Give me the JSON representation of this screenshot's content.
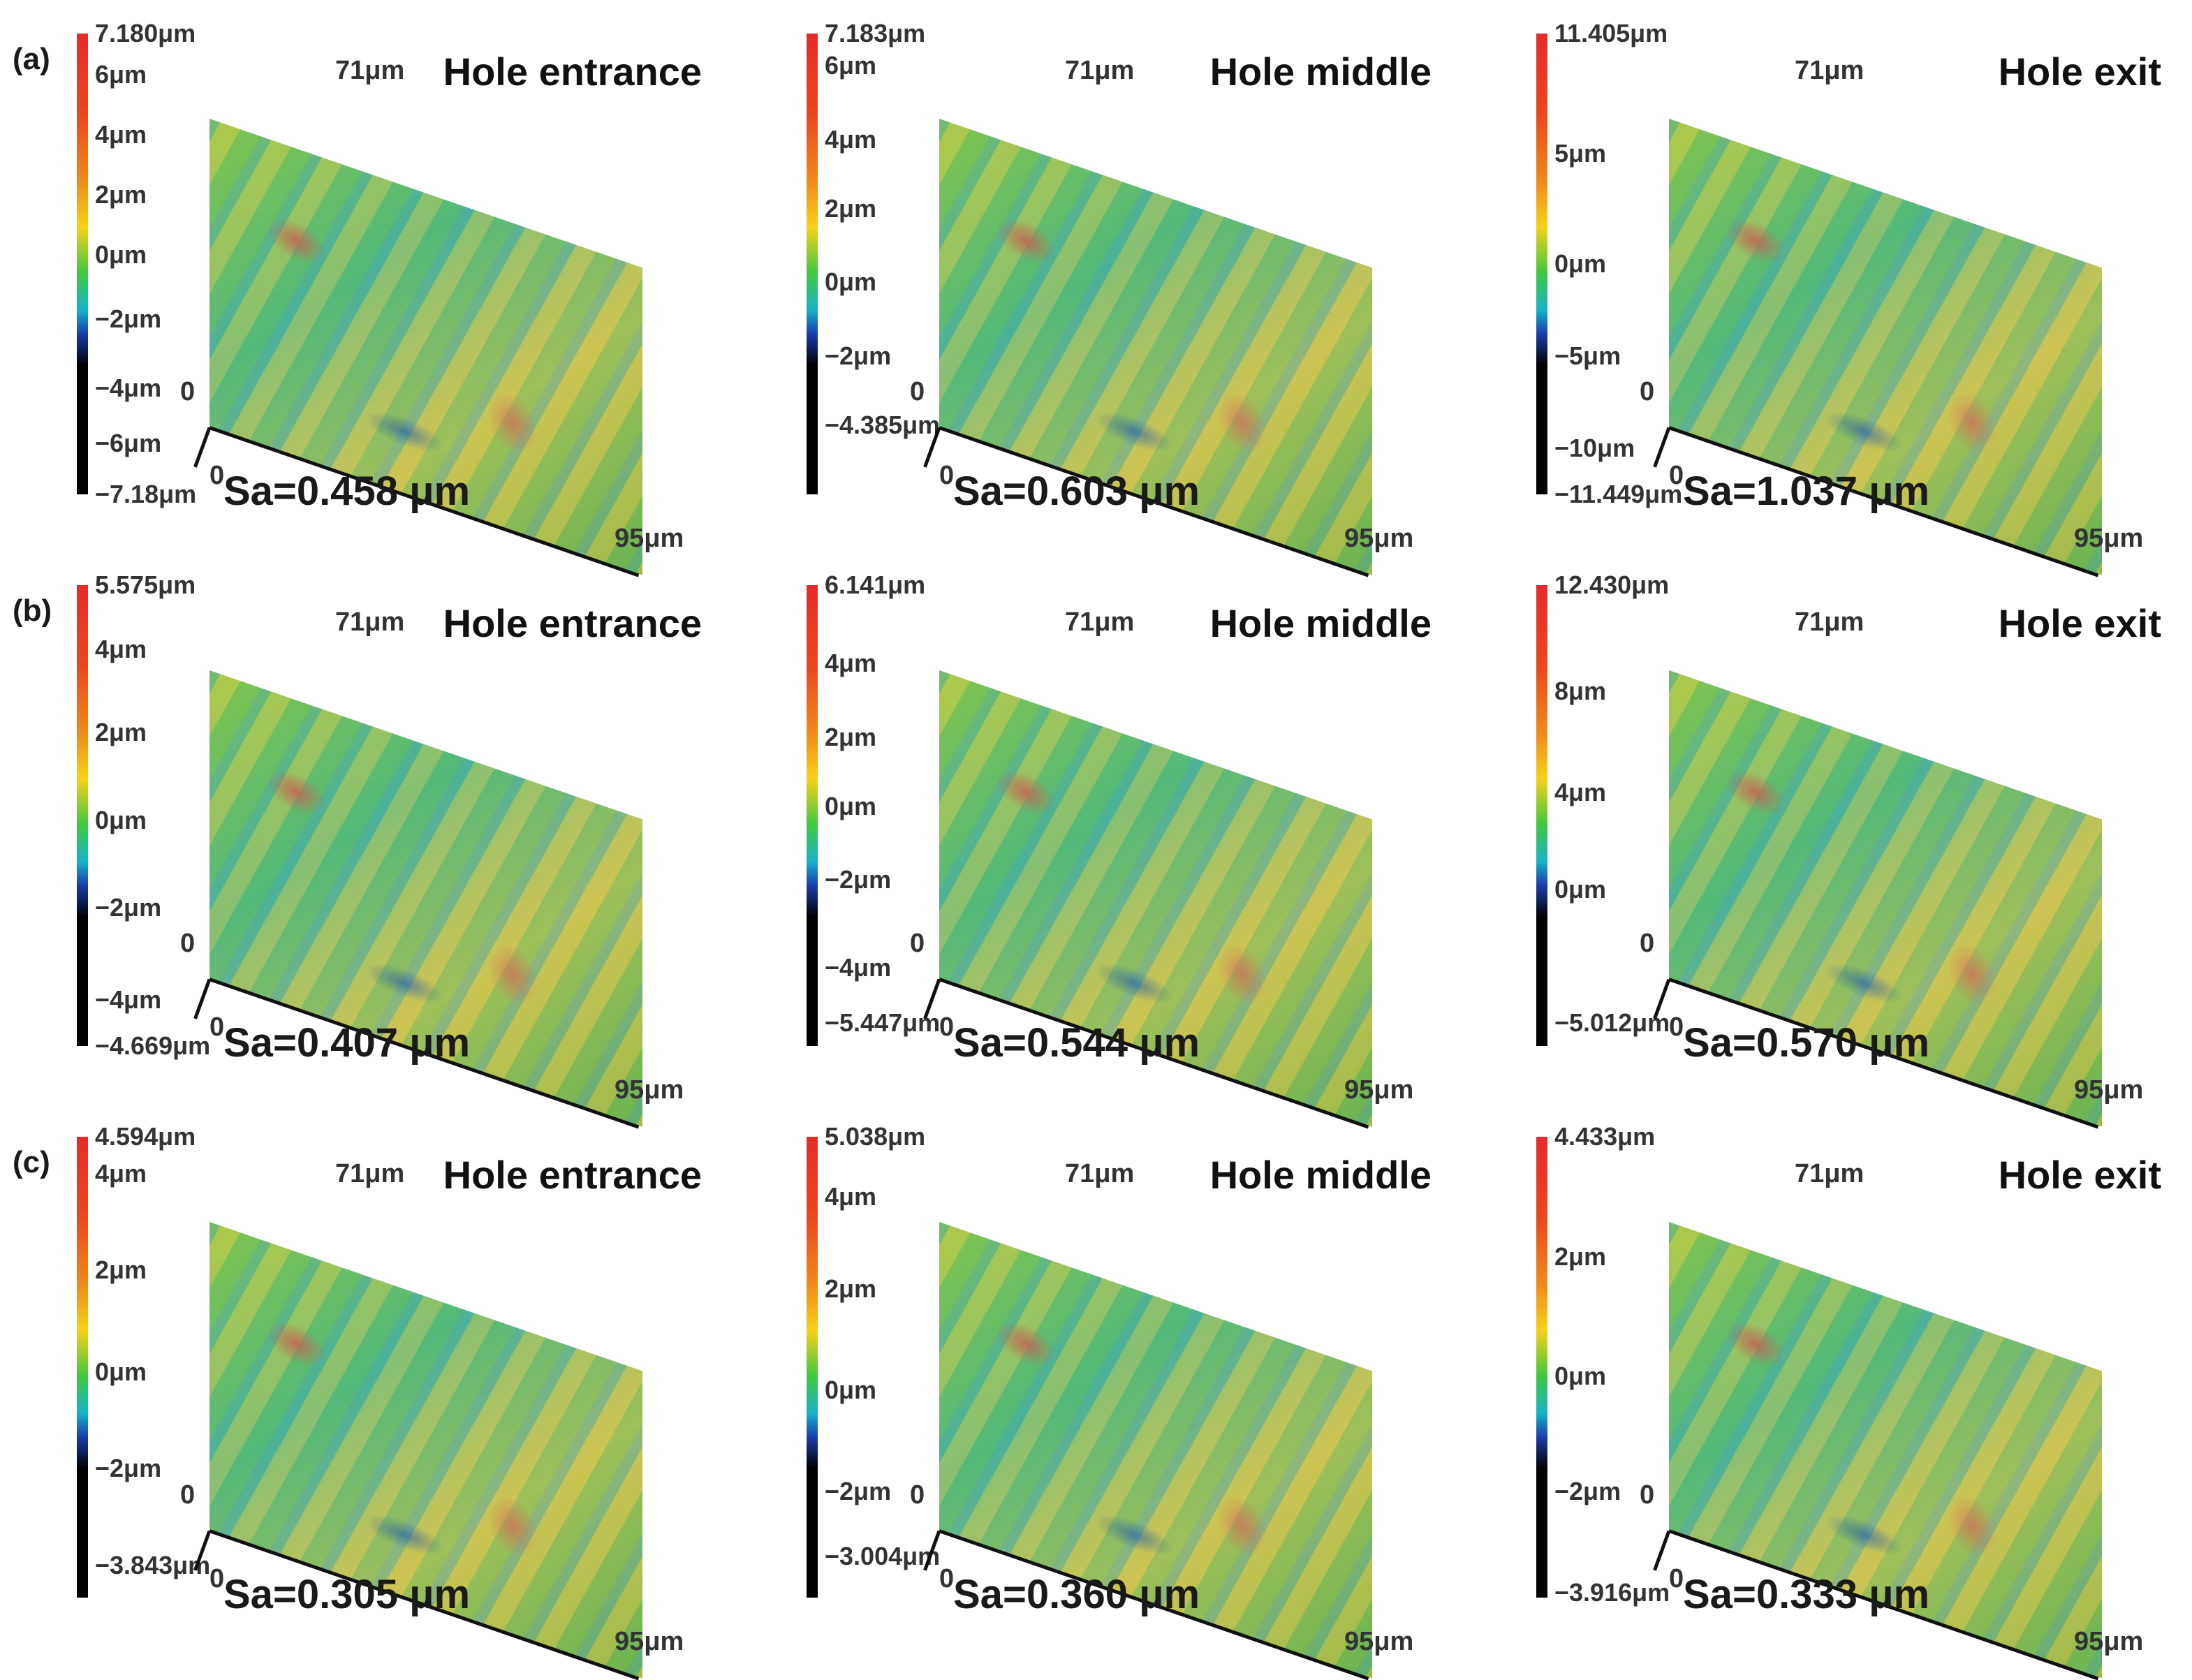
{
  "colors": {
    "surface_green": "#5fc08a",
    "surface_gold": "#c9c85a",
    "colorbar_top": "#e52b2b",
    "colorbar_bottom": "#000000"
  },
  "panels": [
    {
      "row_label": "(a)",
      "title": "Hole entrance",
      "sa": "Sa=0.458 μm",
      "y_label": "71μm",
      "origin_top": "0",
      "origin_bottom": "0",
      "x_label": "95μm",
      "ticks": [
        {
          "text": "7.180μm",
          "pos": 0
        },
        {
          "text": "6μm",
          "pos": 0.09
        },
        {
          "text": "4μm",
          "pos": 0.22
        },
        {
          "text": "2μm",
          "pos": 0.35
        },
        {
          "text": "0μm",
          "pos": 0.48
        },
        {
          "text": "−2μm",
          "pos": 0.62
        },
        {
          "text": "−4μm",
          "pos": 0.77
        },
        {
          "text": "−6μm",
          "pos": 0.89
        },
        {
          "text": "−7.18μm",
          "pos": 1
        }
      ]
    },
    {
      "row_label": "",
      "title": "Hole middle",
      "sa": "Sa=0.603 μm",
      "y_label": "71μm",
      "origin_top": "0",
      "origin_bottom": "0",
      "x_label": "95μm",
      "ticks": [
        {
          "text": "7.183μm",
          "pos": 0
        },
        {
          "text": "6μm",
          "pos": 0.07
        },
        {
          "text": "4μm",
          "pos": 0.23
        },
        {
          "text": "2μm",
          "pos": 0.38
        },
        {
          "text": "0μm",
          "pos": 0.54
        },
        {
          "text": "−2μm",
          "pos": 0.7
        },
        {
          "text": "−4.385μm",
          "pos": 0.85
        }
      ]
    },
    {
      "row_label": "",
      "title": "Hole exit",
      "sa": "Sa=1.037 μm",
      "y_label": "71μm",
      "origin_top": "0",
      "origin_bottom": "0",
      "x_label": "95μm",
      "ticks": [
        {
          "text": "11.405μm",
          "pos": 0
        },
        {
          "text": "5μm",
          "pos": 0.26
        },
        {
          "text": "0μm",
          "pos": 0.5
        },
        {
          "text": "−5μm",
          "pos": 0.7
        },
        {
          "text": "−10μm",
          "pos": 0.9
        },
        {
          "text": "−11.449μm",
          "pos": 1
        }
      ]
    },
    {
      "row_label": "(b)",
      "title": "Hole entrance",
      "sa": "Sa=0.407 μm",
      "y_label": "71μm",
      "origin_top": "0",
      "origin_bottom": "0",
      "x_label": "95μm",
      "ticks": [
        {
          "text": "5.575μm",
          "pos": 0
        },
        {
          "text": "4μm",
          "pos": 0.14
        },
        {
          "text": "2μm",
          "pos": 0.32
        },
        {
          "text": "0μm",
          "pos": 0.51
        },
        {
          "text": "−2μm",
          "pos": 0.7
        },
        {
          "text": "−4μm",
          "pos": 0.9
        },
        {
          "text": "−4.669μm",
          "pos": 1
        }
      ]
    },
    {
      "row_label": "",
      "title": "Hole middle",
      "sa": "Sa=0.544 μm",
      "y_label": "71μm",
      "origin_top": "0",
      "origin_bottom": "0",
      "x_label": "95μm",
      "ticks": [
        {
          "text": "6.141μm",
          "pos": 0
        },
        {
          "text": "4μm",
          "pos": 0.17
        },
        {
          "text": "2μm",
          "pos": 0.33
        },
        {
          "text": "0μm",
          "pos": 0.48
        },
        {
          "text": "−2μm",
          "pos": 0.64
        },
        {
          "text": "−4μm",
          "pos": 0.83
        },
        {
          "text": "−5.447μm",
          "pos": 0.95
        }
      ]
    },
    {
      "row_label": "",
      "title": "Hole exit",
      "sa": "Sa=0.570 μm",
      "y_label": "71μm",
      "origin_top": "0",
      "origin_bottom": "0",
      "x_label": "95μm",
      "ticks": [
        {
          "text": "12.430μm",
          "pos": 0
        },
        {
          "text": "8μm",
          "pos": 0.23
        },
        {
          "text": "4μm",
          "pos": 0.45
        },
        {
          "text": "0μm",
          "pos": 0.66
        },
        {
          "text": "−5.012μm",
          "pos": 0.95
        }
      ]
    },
    {
      "row_label": "(c)",
      "title": "Hole entrance",
      "sa": "Sa=0.305 μm",
      "y_label": "71μm",
      "origin_top": "0",
      "origin_bottom": "0",
      "x_label": "95μm",
      "ticks": [
        {
          "text": "4.594μm",
          "pos": 0
        },
        {
          "text": "4μm",
          "pos": 0.08
        },
        {
          "text": "2μm",
          "pos": 0.29
        },
        {
          "text": "0μm",
          "pos": 0.51
        },
        {
          "text": "−2μm",
          "pos": 0.72
        },
        {
          "text": "−3.843μm",
          "pos": 0.93
        }
      ]
    },
    {
      "row_label": "",
      "title": "Hole middle",
      "sa": "Sa=0.360 μm",
      "y_label": "71μm",
      "origin_top": "0",
      "origin_bottom": "0",
      "x_label": "95μm",
      "ticks": [
        {
          "text": "5.038μm",
          "pos": 0
        },
        {
          "text": "4μm",
          "pos": 0.13
        },
        {
          "text": "2μm",
          "pos": 0.33
        },
        {
          "text": "0μm",
          "pos": 0.55
        },
        {
          "text": "−2μm",
          "pos": 0.77
        },
        {
          "text": "−3.004μm",
          "pos": 0.91
        }
      ]
    },
    {
      "row_label": "",
      "title": "Hole exit",
      "sa": "Sa=0.333 μm",
      "y_label": "71μm",
      "origin_top": "0",
      "origin_bottom": "0",
      "x_label": "95μm",
      "ticks": [
        {
          "text": "4.433μm",
          "pos": 0
        },
        {
          "text": "2μm",
          "pos": 0.26
        },
        {
          "text": "0μm",
          "pos": 0.52
        },
        {
          "text": "−2μm",
          "pos": 0.77
        },
        {
          "text": "−3.916μm",
          "pos": 0.99
        }
      ]
    }
  ]
}
